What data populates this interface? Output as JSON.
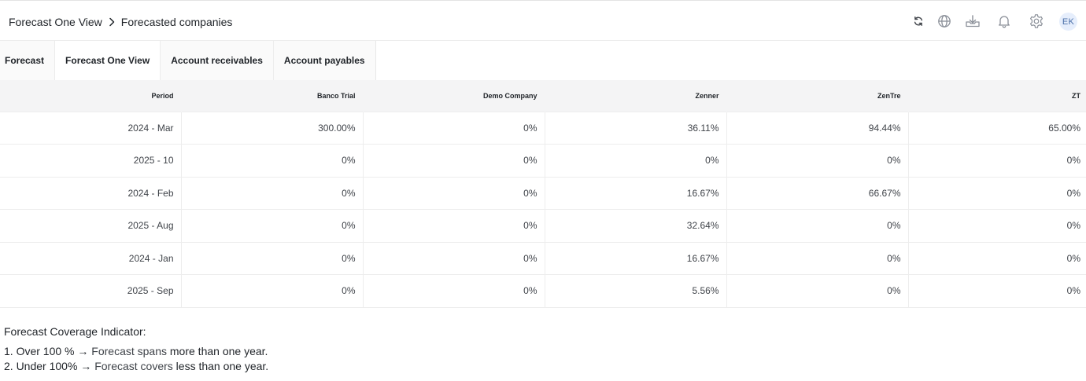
{
  "header": {
    "breadcrumb": [
      {
        "label": "Forecast One View"
      },
      {
        "label": "Forecasted companies"
      }
    ],
    "toolbar": {
      "icons": [
        "refresh-icon",
        "globe-icon",
        "download-tray-icon",
        "bell-icon",
        "gear-icon"
      ],
      "avatar_initials": "EK",
      "icon_color": "#8a8f98"
    }
  },
  "tabs": [
    {
      "label": "Forecast",
      "active": false
    },
    {
      "label": "Forecast One View",
      "active": true
    },
    {
      "label": "Account receivables",
      "active": false
    },
    {
      "label": "Account payables",
      "active": false
    }
  ],
  "table": {
    "columns": [
      "Period",
      "Banco Trial",
      "Demo Company",
      "Zenner",
      "ZenTre",
      "ZT"
    ],
    "rows": [
      [
        "2024 - Mar",
        "300.00%",
        "0%",
        "36.11%",
        "94.44%",
        "65.00%"
      ],
      [
        "2025 - 10",
        "0%",
        "0%",
        "0%",
        "0%",
        "0%"
      ],
      [
        "2024 - Feb",
        "0%",
        "0%",
        "16.67%",
        "66.67%",
        "0%"
      ],
      [
        "2025 - Aug",
        "0%",
        "0%",
        "32.64%",
        "0%",
        "0%"
      ],
      [
        "2024 - Jan",
        "0%",
        "0%",
        "16.67%",
        "0%",
        "0%"
      ],
      [
        "2025 - Sep",
        "0%",
        "0%",
        "5.56%",
        "0%",
        "0%"
      ]
    ]
  },
  "legend": {
    "title": "Forecast Coverage Indicator:",
    "items": [
      {
        "lead": "1. Over 100 % →",
        "mid": "Forecast spans",
        "tail": "more than one year."
      },
      {
        "lead": "2. Under 100% →",
        "mid": "Forecast covers",
        "tail": "less than one year."
      }
    ]
  }
}
